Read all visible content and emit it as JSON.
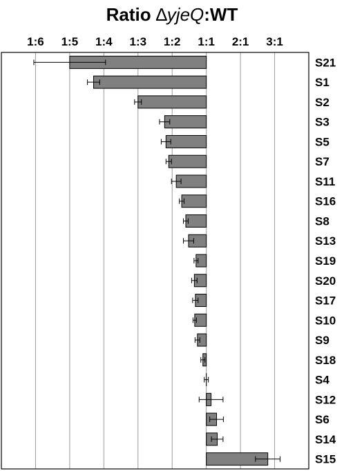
{
  "chart_data": {
    "type": "bar",
    "orientation": "horizontal",
    "title_parts": {
      "prefix": "Ratio ",
      "delta": "∆",
      "gene": "yjeQ",
      "suffix": ":WT"
    },
    "x_tick_labels": [
      "1:6",
      "1:5",
      "1:4",
      "1:3",
      "1:2",
      "1:1",
      "2:1",
      "3:1"
    ],
    "x_tick_values": [
      -5,
      -4,
      -3,
      -2,
      -1,
      0,
      1,
      2
    ],
    "xlim": [
      -6,
      3
    ],
    "grid": true,
    "bar_color": "#808080",
    "categories": [
      "S21",
      "S1",
      "S2",
      "S3",
      "S5",
      "S7",
      "S11",
      "S16",
      "S8",
      "S13",
      "S19",
      "S20",
      "S17",
      "S10",
      "S9",
      "S18",
      "S4",
      "S12",
      "S6",
      "S14",
      "S15"
    ],
    "values": [
      -4.0,
      -3.3,
      -2.0,
      -1.22,
      -1.18,
      -1.1,
      -0.88,
      -0.72,
      -0.6,
      -0.52,
      -0.3,
      -0.35,
      -0.32,
      -0.34,
      -0.26,
      -0.1,
      0.0,
      0.14,
      0.3,
      0.32,
      1.8
    ],
    "errors": [
      1.05,
      0.18,
      0.1,
      0.15,
      0.14,
      0.08,
      0.14,
      0.07,
      0.07,
      0.15,
      0.06,
      0.08,
      0.08,
      0.05,
      0.07,
      0.06,
      0.06,
      0.35,
      0.2,
      0.17,
      0.36
    ]
  }
}
